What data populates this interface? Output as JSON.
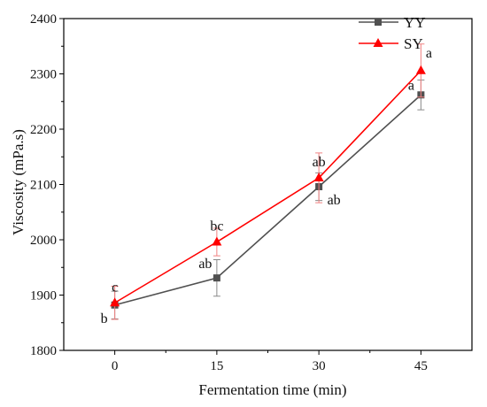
{
  "chart_data": {
    "type": "line",
    "title": "",
    "xlabel": "Fermentation time (min)",
    "ylabel": "Viscosity (mPa.s)",
    "x": [
      0,
      15,
      30,
      45
    ],
    "x_tick_labels": [
      "0",
      "15",
      "30",
      "45"
    ],
    "xlim": [
      -7.5,
      52.5
    ],
    "ylim": [
      1800,
      2400
    ],
    "y_ticks": [
      1800,
      1900,
      2000,
      2100,
      2200,
      2300,
      2400
    ],
    "y_tick_labels": [
      "1800",
      "1900",
      "2000",
      "2100",
      "2200",
      "2300",
      "2400"
    ],
    "grid": false,
    "legend_position": "top-right",
    "series": [
      {
        "name": "YY",
        "color": "#505050",
        "marker": "square",
        "values": [
          1882,
          1931,
          2096,
          2262
        ],
        "error": [
          25,
          33,
          25,
          27
        ],
        "labels": [
          "b",
          "ab",
          "ab",
          "a"
        ]
      },
      {
        "name": "SY",
        "color": "#ff0000",
        "marker": "triangle",
        "values": [
          1886,
          1996,
          2112,
          2306
        ],
        "error": [
          30,
          25,
          45,
          48
        ],
        "labels": [
          "c",
          "bc",
          "ab",
          "a"
        ]
      }
    ]
  }
}
